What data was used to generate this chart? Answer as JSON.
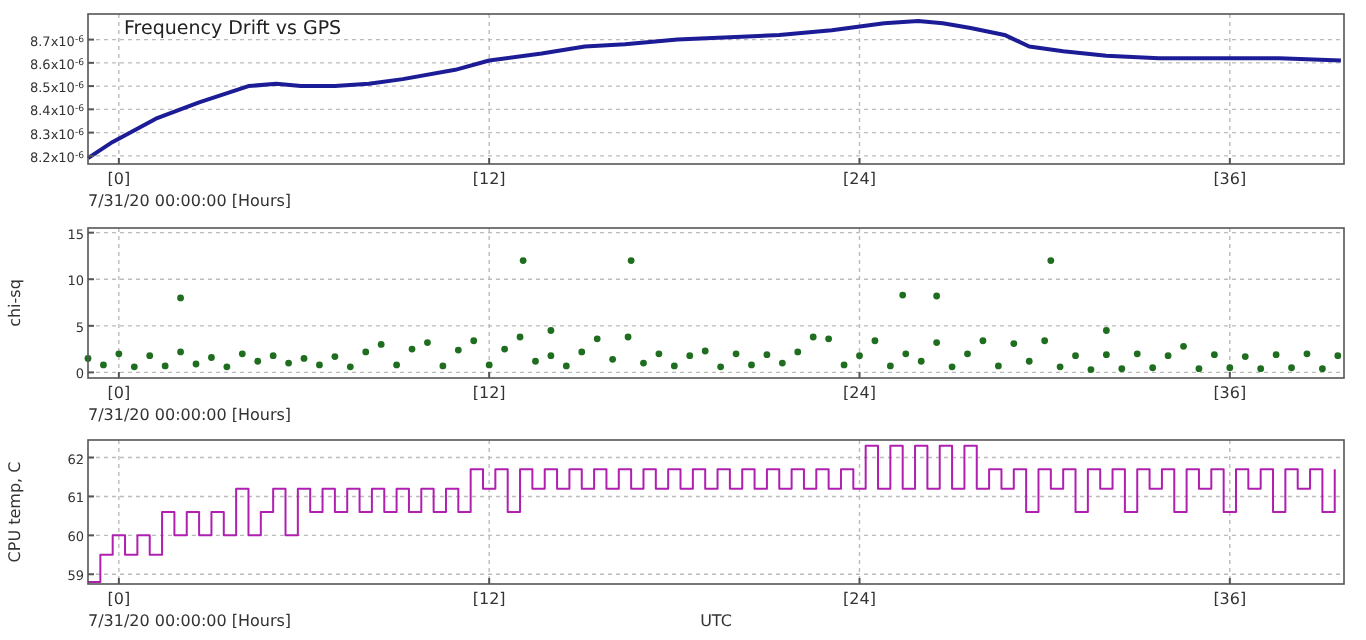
{
  "chart_data": [
    {
      "type": "line",
      "title": "Frequency Drift vs GPS",
      "annotations": [
        "7/31/20 00:00:00 [Hours]"
      ],
      "grid": true,
      "xlim": [
        -1.0,
        39.7
      ],
      "xticks": [
        {
          "value": 0,
          "label": "[0]"
        },
        {
          "value": 12,
          "label": "[12]"
        },
        {
          "value": 24,
          "label": "[24]"
        },
        {
          "value": 36,
          "label": "[36]"
        }
      ],
      "ylim": [
        8.165e-06,
        8.81e-06
      ],
      "yticks": [
        {
          "value": 8.2e-06,
          "label": "8.2x10$^{-6}$"
        },
        {
          "value": 8.3e-06,
          "label": "8.3x10$^{-6}$"
        },
        {
          "value": 8.4e-06,
          "label": "8.4x10$^{-6}$"
        },
        {
          "value": 8.5e-06,
          "label": "8.5x10$^{-6}$"
        },
        {
          "value": 8.6e-06,
          "label": "8.6x10$^{-6}$"
        },
        {
          "value": 8.7e-06,
          "label": "8.7x10$^{-6}$"
        }
      ],
      "x": [
        -1.0,
        -0.2,
        1.2,
        2.6,
        4.2,
        5.1,
        5.9,
        7.0,
        8.1,
        9.2,
        10.9,
        12.0,
        13.7,
        15.1,
        16.4,
        18.1,
        19.8,
        21.4,
        23.1,
        24.8,
        25.9,
        26.7,
        27.6,
        28.7,
        29.5,
        30.6,
        32.0,
        33.7,
        35.9,
        37.6,
        39.6
      ],
      "series": [
        {
          "color": "#1c1c96",
          "values": [
            8.19e-06,
            8.26e-06,
            8.36e-06,
            8.43e-06,
            8.5e-06,
            8.51e-06,
            8.5e-06,
            8.5e-06,
            8.51e-06,
            8.53e-06,
            8.57e-06,
            8.61e-06,
            8.64e-06,
            8.67e-06,
            8.68e-06,
            8.7e-06,
            8.71e-06,
            8.72e-06,
            8.74e-06,
            8.77e-06,
            8.78e-06,
            8.77e-06,
            8.75e-06,
            8.72e-06,
            8.67e-06,
            8.65e-06,
            8.63e-06,
            8.62e-06,
            8.62e-06,
            8.62e-06,
            8.61e-06
          ]
        }
      ]
    },
    {
      "type": "scatter",
      "ylabel": "chi-sq",
      "annotations": [
        "7/31/20 00:00:00 [Hours]"
      ],
      "grid": true,
      "xlim": [
        -1.0,
        39.7
      ],
      "xticks": [
        {
          "value": 0,
          "label": "[0]"
        },
        {
          "value": 12,
          "label": "[12]"
        },
        {
          "value": 24,
          "label": "[24]"
        },
        {
          "value": 36,
          "label": "[36]"
        }
      ],
      "ylim": [
        -0.6,
        15.5
      ],
      "yticks": [
        0,
        5,
        10,
        15
      ],
      "x": [
        -1,
        -0.5,
        0,
        0.5,
        1,
        1.5,
        2,
        2.5,
        3,
        3.5,
        4,
        4.5,
        5,
        5.5,
        6,
        6.5,
        7,
        7.5,
        8,
        8.5,
        9,
        9.5,
        10,
        10.5,
        11,
        11.5,
        12,
        12.5,
        13,
        13.5,
        14,
        14.5,
        15,
        15.5,
        16,
        16.5,
        17,
        17.5,
        18,
        18.5,
        19,
        19.5,
        20,
        20.5,
        21,
        21.5,
        22,
        22.5,
        23,
        23.5,
        24,
        24.5,
        25,
        25.5,
        26,
        26.5,
        27,
        27.5,
        28,
        28.5,
        29,
        29.5,
        30,
        30.5,
        31,
        31.5,
        32,
        32.5,
        33,
        33.5,
        34,
        34.5,
        35,
        35.5,
        36,
        36.5,
        37,
        37.5,
        38,
        38.5,
        39,
        39.5,
        2.0,
        13.1,
        16.6,
        25.4,
        26.5,
        30.2,
        14.0,
        32.0
      ],
      "series": [
        {
          "color": "#1f6e1f",
          "values": [
            1.5,
            0.8,
            2.0,
            0.6,
            1.8,
            0.7,
            2.2,
            0.9,
            1.6,
            0.6,
            2.0,
            1.2,
            1.8,
            1.0,
            1.5,
            0.8,
            1.7,
            0.6,
            2.2,
            3.0,
            0.8,
            2.5,
            3.2,
            0.7,
            2.4,
            3.4,
            0.8,
            2.5,
            3.8,
            1.2,
            1.8,
            0.7,
            2.2,
            3.6,
            1.4,
            3.8,
            1.0,
            2.0,
            0.7,
            1.8,
            2.3,
            0.6,
            2.0,
            0.8,
            1.9,
            1.0,
            2.2,
            3.8,
            3.6,
            0.8,
            1.8,
            3.4,
            0.7,
            2.0,
            1.2,
            3.2,
            0.6,
            2.0,
            3.4,
            0.7,
            3.1,
            1.2,
            3.4,
            0.6,
            1.8,
            0.3,
            1.9,
            0.4,
            2.0,
            0.5,
            1.8,
            2.8,
            0.4,
            1.9,
            0.5,
            1.7,
            0.4,
            1.9,
            0.5,
            2.0,
            0.4,
            1.8,
            8.0,
            12.0,
            12.0,
            8.3,
            8.2,
            12.0,
            4.5,
            4.5
          ]
        }
      ]
    },
    {
      "type": "step",
      "ylabel": "CPU temp, C",
      "xlabel": "UTC",
      "annotations": [
        "7/31/20 00:00:00 [Hours]"
      ],
      "grid": true,
      "xlim": [
        -1.0,
        39.7
      ],
      "xticks": [
        {
          "value": 0,
          "label": "[0]"
        },
        {
          "value": 12,
          "label": "[12]"
        },
        {
          "value": 24,
          "label": "[24]"
        },
        {
          "value": 36,
          "label": "[36]"
        }
      ],
      "ylim": [
        58.75,
        62.45
      ],
      "yticks": [
        59,
        60,
        61,
        62
      ],
      "x": [
        -1.0,
        -0.6,
        -0.2,
        0.2,
        0.6,
        1.0,
        1.4,
        1.8,
        2.2,
        2.6,
        3.0,
        3.4,
        3.8,
        4.2,
        4.6,
        5.0,
        5.4,
        5.8,
        6.2,
        6.6,
        7.0,
        7.4,
        7.8,
        8.2,
        8.6,
        9.0,
        9.4,
        9.8,
        10.2,
        10.6,
        11.0,
        11.4,
        11.8,
        12.2,
        12.6,
        13.0,
        13.4,
        13.8,
        14.2,
        14.6,
        15.0,
        15.4,
        15.8,
        16.2,
        16.6,
        17.0,
        17.4,
        17.8,
        18.2,
        18.6,
        19.0,
        19.4,
        19.8,
        20.2,
        20.6,
        21.0,
        21.4,
        21.8,
        22.2,
        22.6,
        23.0,
        23.4,
        23.8,
        24.2,
        24.6,
        25.0,
        25.4,
        25.8,
        26.2,
        26.6,
        27.0,
        27.4,
        27.8,
        28.2,
        28.6,
        29.0,
        29.4,
        29.8,
        30.2,
        30.6,
        31.0,
        31.4,
        31.8,
        32.2,
        32.6,
        33.0,
        33.4,
        33.8,
        34.2,
        34.6,
        35.0,
        35.4,
        35.8,
        36.2,
        36.6,
        37.0,
        37.4,
        37.8,
        38.2,
        38.6,
        39.0,
        39.4
      ],
      "series": [
        {
          "color": "#b020b0",
          "values": [
            58.8,
            59.5,
            60.0,
            59.5,
            60.0,
            59.5,
            60.6,
            60.0,
            60.6,
            60.0,
            60.6,
            60.0,
            61.2,
            60.0,
            60.6,
            61.2,
            60.0,
            61.2,
            60.6,
            61.2,
            60.6,
            61.2,
            60.6,
            61.2,
            60.6,
            61.2,
            60.6,
            61.2,
            60.6,
            61.2,
            60.6,
            61.7,
            61.2,
            61.7,
            60.6,
            61.7,
            61.2,
            61.7,
            61.2,
            61.7,
            61.2,
            61.7,
            61.2,
            61.7,
            61.2,
            61.7,
            61.2,
            61.7,
            61.2,
            61.7,
            61.2,
            61.7,
            61.2,
            61.7,
            61.2,
            61.7,
            61.2,
            61.7,
            61.2,
            61.7,
            61.2,
            61.7,
            61.2,
            62.3,
            61.2,
            62.3,
            61.2,
            62.3,
            61.2,
            62.3,
            61.2,
            62.3,
            61.2,
            61.7,
            61.2,
            61.7,
            60.6,
            61.7,
            61.2,
            61.7,
            60.6,
            61.7,
            61.2,
            61.7,
            60.6,
            61.7,
            61.2,
            61.7,
            60.6,
            61.7,
            61.2,
            61.7,
            60.6,
            61.7,
            61.2,
            61.7,
            60.6,
            61.7,
            61.2,
            61.7,
            60.6,
            61.7
          ]
        }
      ]
    }
  ]
}
